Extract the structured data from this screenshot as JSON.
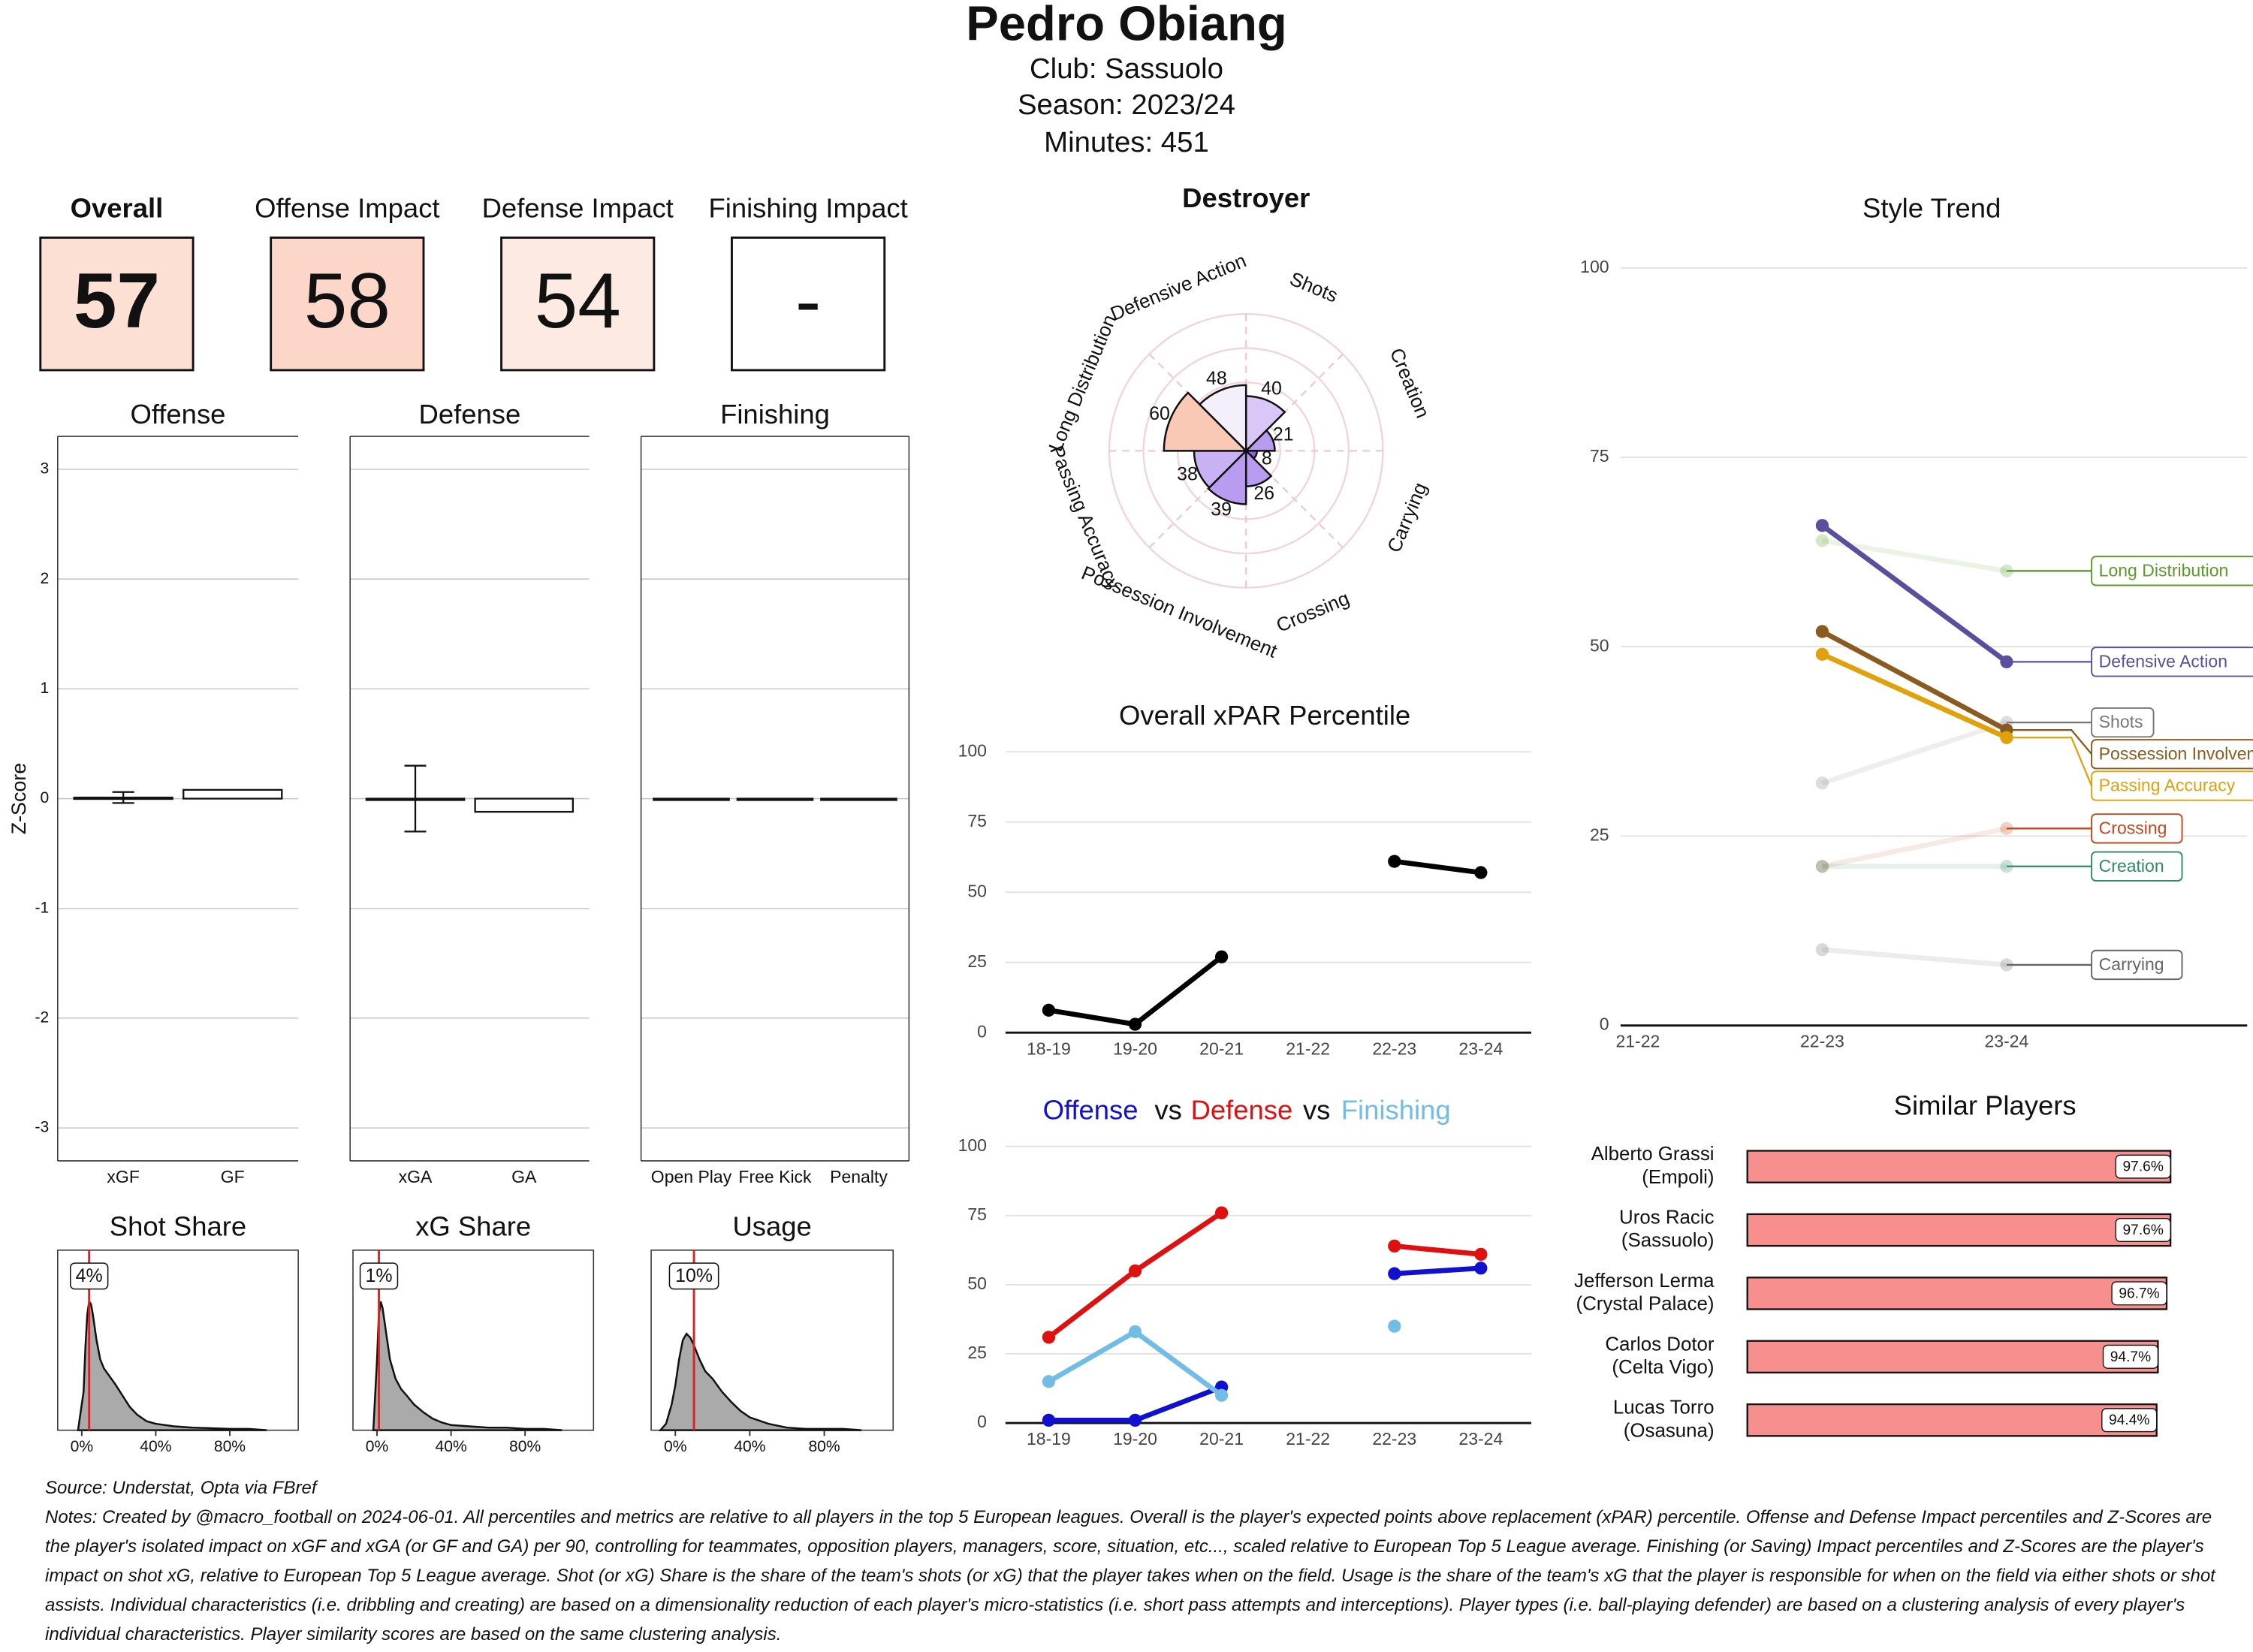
{
  "header": {
    "title": "Pedro Obiang",
    "club": "Club:  Sassuolo",
    "season": "Season:  2023/24",
    "minutes": "Minutes:  451"
  },
  "scores": [
    {
      "label": "Overall",
      "value": 57,
      "color": "#fde0d4"
    },
    {
      "label": "Offense Impact",
      "value": 58,
      "color": "#fcd6c9"
    },
    {
      "label": "Defense Impact",
      "value": 54,
      "color": "#fdebe3"
    },
    {
      "label": "Finishing Impact",
      "value": "-",
      "color": "#ffffff"
    }
  ],
  "chart_data": [
    {
      "type": "facet_bar",
      "ylabel": "Z-Score",
      "ylim": [
        -3.3,
        3.3
      ],
      "yticks": [
        -3,
        -2,
        -1,
        0,
        1,
        2,
        3
      ],
      "grid": true,
      "color": "#ffffff",
      "facets": [
        {
          "title": "Offense",
          "categories": [
            "xGF",
            "GF"
          ],
          "values": [
            0.01,
            0.08
          ],
          "errors": [
            0.05,
            null
          ]
        },
        {
          "title": "Defense",
          "categories": [
            "xGA",
            "GA"
          ],
          "values": [
            0,
            -0.12
          ],
          "errors": [
            0.3,
            null
          ]
        },
        {
          "title": "Finishing",
          "categories": [
            "Open Play",
            "Free Kick",
            "Penalty"
          ],
          "values": [
            0,
            0,
            0
          ],
          "errors": [
            null,
            null,
            null
          ]
        }
      ]
    },
    {
      "type": "density",
      "xlim": [
        -13,
        117
      ],
      "xticks": [
        {
          "value": 0,
          "label": "0%"
        },
        {
          "value": 40,
          "label": "40%"
        },
        {
          "value": 80,
          "label": "80%"
        }
      ],
      "ylim": [
        0,
        1.4
      ],
      "color": "#aaaaaa",
      "marker_color": "#e02020",
      "panels": [
        {
          "title": "Shot Share",
          "x": [
            -2,
            1,
            2,
            3,
            4,
            5,
            6,
            8,
            10,
            12,
            15,
            18,
            22,
            26,
            30,
            35,
            40,
            50,
            60,
            70,
            80,
            90,
            100
          ],
          "values": [
            0,
            0.3,
            0.65,
            0.9,
            1.0,
            0.98,
            0.9,
            0.7,
            0.55,
            0.48,
            0.42,
            0.36,
            0.27,
            0.18,
            0.12,
            0.07,
            0.05,
            0.03,
            0.02,
            0.015,
            0.01,
            0.01,
            0
          ],
          "marker": 4,
          "marker_label": "4%"
        },
        {
          "title": "xG Share",
          "x": [
            -2,
            0,
            1,
            2,
            3,
            5,
            7,
            10,
            13,
            16,
            20,
            25,
            30,
            35,
            40,
            50,
            60,
            70,
            80,
            90,
            100
          ],
          "values": [
            0,
            0.55,
            0.9,
            1.0,
            0.95,
            0.75,
            0.55,
            0.4,
            0.32,
            0.27,
            0.2,
            0.14,
            0.09,
            0.06,
            0.04,
            0.03,
            0.02,
            0.02,
            0.01,
            0.01,
            0
          ],
          "marker": 1,
          "marker_label": "1%"
        },
        {
          "title": "Usage",
          "x": [
            -8,
            -5,
            -2,
            0,
            2,
            4,
            6,
            8,
            10,
            13,
            16,
            20,
            25,
            30,
            35,
            40,
            50,
            60,
            70,
            80,
            90,
            100
          ],
          "values": [
            0,
            0.05,
            0.2,
            0.35,
            0.55,
            0.7,
            0.75,
            0.72,
            0.66,
            0.55,
            0.46,
            0.4,
            0.3,
            0.22,
            0.15,
            0.1,
            0.05,
            0.02,
            0.01,
            0.01,
            0.01,
            0
          ],
          "marker": 10,
          "marker_label": "10%"
        }
      ]
    },
    {
      "type": "rose",
      "title": "Destroyer",
      "ylim": [
        0,
        100
      ],
      "categories": [
        "Shots",
        "Creation",
        "Carrying",
        "Crossing",
        "Possession Involvement",
        "Passing Accuracy",
        "Long Distribution",
        "Defensive Action"
      ],
      "values": [
        40,
        21,
        8,
        26,
        39,
        38,
        60,
        48
      ],
      "colors": [
        "#d9c8f7",
        "#b79cf0",
        "#8c62e0",
        "#b79cf0",
        "#b79cf0",
        "#c8b2f3",
        "#f9c9b6",
        "#f4f0fb"
      ]
    },
    {
      "type": "line",
      "title": "Overall xPAR Percentile",
      "categories": [
        "18-19",
        "19-20",
        "20-21",
        "21-22",
        "22-23",
        "23-24"
      ],
      "values": [
        8,
        3,
        27,
        null,
        61,
        57
      ],
      "color": "#000000",
      "ylim": [
        0,
        100
      ],
      "yticks": [
        0,
        25,
        50,
        75,
        100
      ],
      "grid": true
    },
    {
      "type": "line",
      "title_separator": "vs",
      "categories": [
        "18-19",
        "19-20",
        "20-21",
        "21-22",
        "22-23",
        "23-24"
      ],
      "ylim": [
        0,
        100
      ],
      "yticks": [
        0,
        25,
        50,
        75,
        100
      ],
      "grid": true,
      "series": [
        {
          "name": "Offense",
          "color": "#1010d0",
          "values": [
            1,
            1,
            13,
            null,
            54,
            56
          ]
        },
        {
          "name": "Defense",
          "color": "#e01010",
          "values": [
            31,
            55,
            76,
            null,
            64,
            61
          ]
        },
        {
          "name": "Finishing",
          "color": "#72bde6",
          "values": [
            15,
            33,
            10,
            null,
            35,
            null
          ]
        }
      ]
    },
    {
      "type": "line",
      "title": "Style Trend",
      "categories": [
        "21-22",
        "22-23",
        "23-24"
      ],
      "ylim": [
        0,
        100
      ],
      "yticks": [
        0,
        25,
        50,
        75,
        100
      ],
      "grid": true,
      "series": [
        {
          "name": "Long Distribution",
          "color": "#5c9a2a",
          "values": [
            null,
            64,
            60
          ],
          "highlight": false
        },
        {
          "name": "Defensive Action",
          "color": "#5c4e9e",
          "values": [
            null,
            66,
            48
          ],
          "highlight": true
        },
        {
          "name": "Shots",
          "color": "#777777",
          "values": [
            null,
            32,
            40
          ],
          "highlight": false
        },
        {
          "name": "Possession Involvement",
          "color": "#8b5a1e",
          "values": [
            null,
            52,
            39
          ],
          "highlight": true
        },
        {
          "name": "Passing Accuracy",
          "color": "#e0a10c",
          "values": [
            null,
            49,
            38
          ],
          "highlight": true
        },
        {
          "name": "Crossing",
          "color": "#c0481b",
          "values": [
            null,
            21,
            26
          ],
          "highlight": false
        },
        {
          "name": "Creation",
          "color": "#2e8b64",
          "values": [
            null,
            21,
            21
          ],
          "highlight": false
        },
        {
          "name": "Carrying",
          "color": "#666666",
          "values": [
            null,
            10,
            8
          ],
          "highlight": false
        }
      ]
    },
    {
      "type": "hbar",
      "title": "Similar Players",
      "categories": [
        "Alberto Grassi",
        "Uros Racic",
        "Jefferson Lerma",
        "Carlos Dotor",
        "Lucas Torro"
      ],
      "clubs": [
        "(Empoli)",
        "(Sassuolo)",
        "(Crystal Palace)",
        "(Celta Vigo)",
        "(Osasuna)"
      ],
      "values": [
        97.6,
        97.6,
        96.7,
        94.7,
        94.4
      ],
      "value_labels": [
        "97.6%",
        "97.6%",
        "96.7%",
        "94.7%",
        "94.4%"
      ],
      "xlim": [
        0,
        100
      ],
      "color": "#f88f8f"
    }
  ],
  "footer": {
    "source": "Source: Understat, Opta via FBref",
    "notes": "Notes: Created by @macro_football on 2024-06-01. All percentiles and metrics are relative to all players in the top 5 European leagues. Overall is the player's expected points above replacement (xPAR) percentile. Offense and Defense Impact percentiles and Z-Scores are the player's isolated impact on xGF and xGA (or GF and GA) per 90, controlling for teammates, opposition players, managers, score, situation, etc..., scaled relative to European Top 5 League average. Finishing (or Saving) Impact percentiles and Z-Scores are the player's impact on shot xG, relative to European Top 5 League average. Shot (or xG) Share is the share of the team's shots (or xG) that the player takes when on the field. Usage is the share of the team's xG that the player is responsible for when on the field via either shots or shot assists. Individual characteristics (i.e. dribbling and creating) are based on a dimensionality reduction of each player's micro-statistics (i.e. short pass attempts and interceptions). Player types (i.e. ball-playing defender) are based on a clustering analysis of every player's individual characteristics. Player similarity scores are based on the same clustering analysis."
  }
}
